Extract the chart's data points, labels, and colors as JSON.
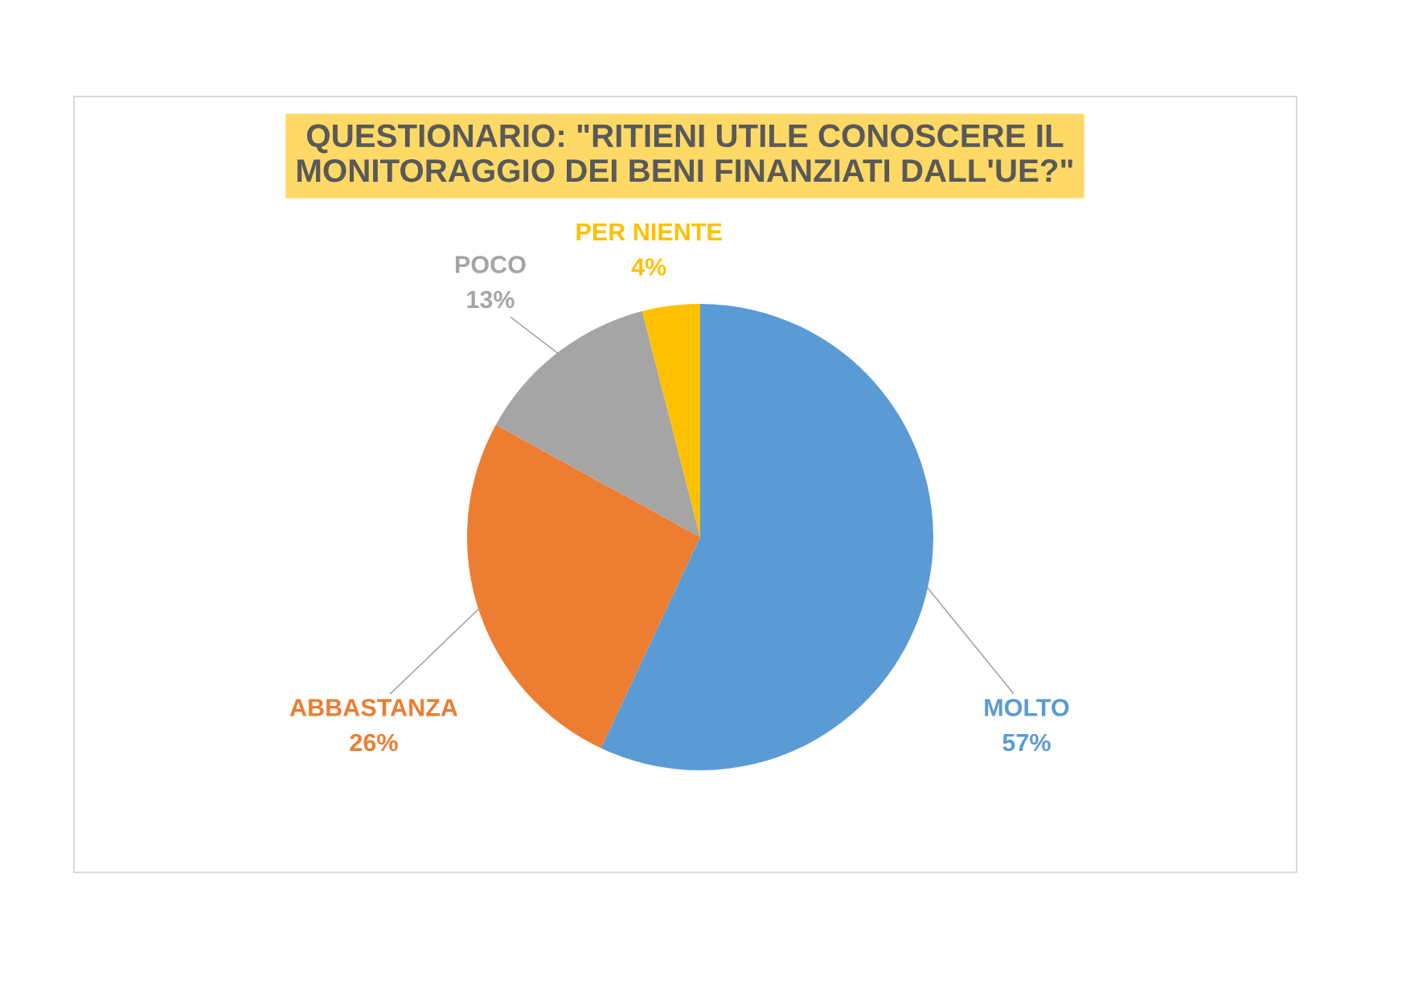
{
  "chart_data": {
    "type": "pie",
    "title": "QUESTIONARIO: \"RITIENI UTILE CONOSCERE IL\nMONITORAGGIO DEI BENI FINANZIATI DALL'UE?\"",
    "categories": [
      "MOLTO",
      "ABBASTANZA",
      "POCO",
      "PER NIENTE"
    ],
    "values": [
      57,
      26,
      13,
      4
    ],
    "colors": [
      "#5b9bd5",
      "#ed7d31",
      "#a5a5a5",
      "#ffc000"
    ],
    "value_labels": [
      "57%",
      "26%",
      "13%",
      "4%"
    ]
  }
}
